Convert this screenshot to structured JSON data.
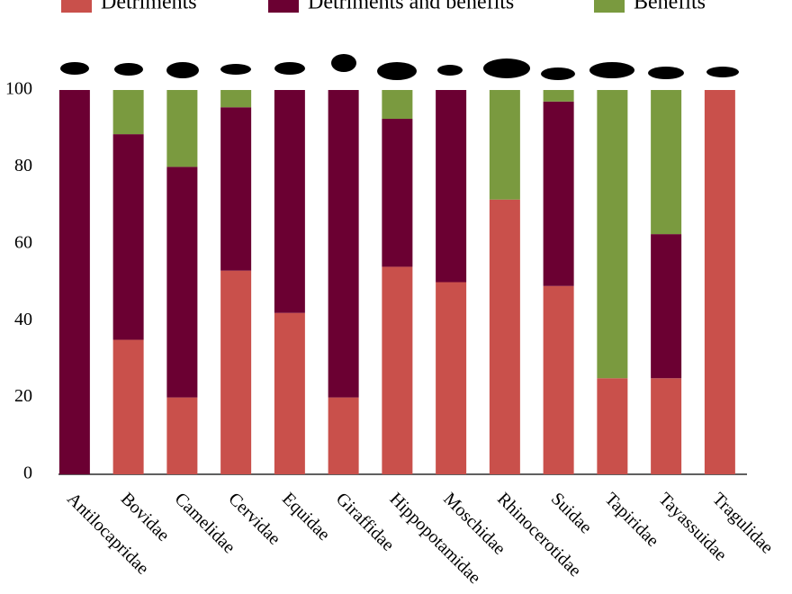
{
  "chart_data": {
    "type": "stacked_bar",
    "categories": [
      "Antilocapridae",
      "Bovidae",
      "Camelidae",
      "Cervidae",
      "Equidae",
      "Giraffidae",
      "Hippopotamidae",
      "Moschidae",
      "Rhinocerotidae",
      "Suidae",
      "Tapiridae",
      "Tayassuidae",
      "Tragulidae"
    ],
    "series": [
      {
        "name": "Detriments",
        "color": "#c9504b",
        "values": [
          0,
          35,
          20,
          53,
          42,
          20,
          54,
          50,
          71.5,
          49,
          25,
          25,
          100
        ]
      },
      {
        "name": "Detriments and benefits",
        "color": "#6b0032",
        "values": [
          100,
          53.5,
          60,
          42.5,
          58,
          80,
          38.5,
          50,
          0,
          48,
          0,
          37.5,
          0
        ]
      },
      {
        "name": "Benefits",
        "color": "#7a9a3f",
        "values": [
          0,
          11.5,
          20,
          4.5,
          0,
          0,
          7.5,
          0,
          28.5,
          3,
          75,
          37.5,
          0
        ]
      }
    ],
    "ylim": [
      0,
      100
    ],
    "yticks": [
      0,
      20,
      40,
      60,
      80,
      100
    ],
    "grid": false,
    "legend": "top"
  }
}
